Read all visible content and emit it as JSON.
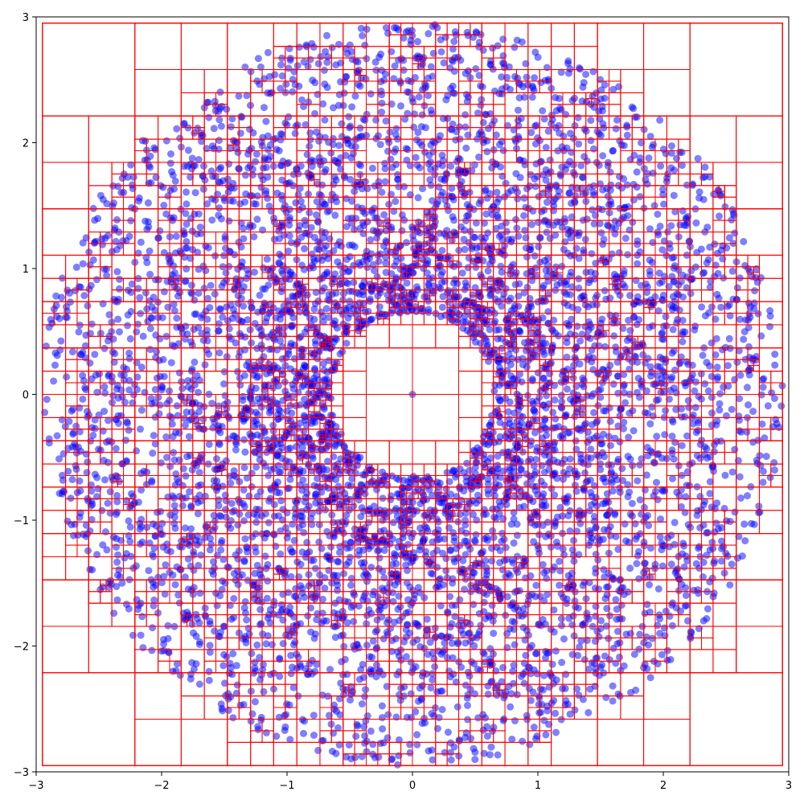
{
  "chart_data": {
    "type": "scatter",
    "title": "",
    "xlabel": "",
    "ylabel": "",
    "xlim": [
      -3,
      3
    ],
    "ylim": [
      -3,
      3
    ],
    "grid": false,
    "xticks": [
      -3,
      -2,
      -1,
      0,
      1,
      2,
      3
    ],
    "yticks": [
      -3,
      -2,
      -1,
      0,
      1,
      2,
      3
    ],
    "xtick_labels": [
      "−3",
      "−2",
      "−1",
      "0",
      "1",
      "2",
      "3"
    ],
    "ytick_labels": [
      "−3",
      "−2",
      "−1",
      "0",
      "1",
      "2",
      "3"
    ],
    "series": [
      {
        "kind": "points",
        "color": "#0000ff",
        "alpha": 0.5,
        "distribution": "annulus",
        "inner_radius": 0.65,
        "outer_radius": 2.95,
        "count": 6000,
        "extra_points": [
          [
            0.0,
            0.0
          ]
        ]
      },
      {
        "kind": "quadtree-rectangles",
        "color": "#ff0000",
        "fill": "none",
        "bounds": [
          -2.95,
          -2.95,
          2.95,
          2.95
        ],
        "max_points_per_cell": 4,
        "max_depth": 8
      }
    ]
  }
}
